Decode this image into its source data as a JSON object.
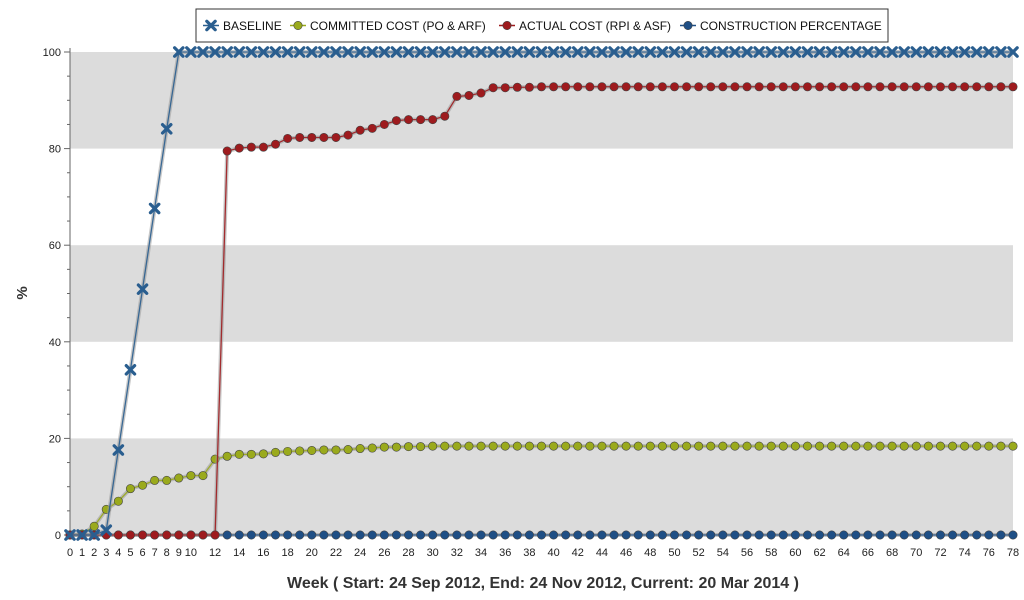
{
  "chart_data": {
    "type": "line",
    "xlabel": "Week ( Start: 24 Sep 2012, End: 24 Nov 2012, Current: 20 Mar 2014 )",
    "ylabel": "%",
    "ylim": [
      0,
      100
    ],
    "yticks": [
      0,
      20,
      40,
      60,
      80,
      100
    ],
    "xlim": [
      0,
      78
    ],
    "x_ticks_labeled": [
      0,
      1,
      2,
      3,
      4,
      5,
      6,
      7,
      8,
      9,
      10,
      12,
      14,
      16,
      18,
      20,
      22,
      24,
      26,
      28,
      30,
      32,
      34,
      36,
      38,
      40,
      42,
      44,
      46,
      48,
      50,
      52,
      54,
      56,
      58,
      60,
      62,
      64,
      66,
      68,
      70,
      72,
      74,
      76,
      78
    ],
    "grid": "alternating horizontal bands",
    "legend_position": "top-center",
    "series": [
      {
        "name": "BASELINE",
        "color": "#2a5e8f",
        "marker": "x",
        "values": [
          0,
          0,
          0,
          1,
          17.6,
          34.2,
          50.9,
          67.6,
          84.1,
          100,
          100,
          100,
          100,
          100,
          100,
          100,
          100,
          100,
          100,
          100,
          100,
          100,
          100,
          100,
          100,
          100,
          100,
          100,
          100,
          100,
          100,
          100,
          100,
          100,
          100,
          100,
          100,
          100,
          100,
          100,
          100,
          100,
          100,
          100,
          100,
          100,
          100,
          100,
          100,
          100,
          100,
          100,
          100,
          100,
          100,
          100,
          100,
          100,
          100,
          100,
          100,
          100,
          100,
          100,
          100,
          100,
          100,
          100,
          100,
          100,
          100,
          100,
          100,
          100,
          100,
          100,
          100,
          100,
          100
        ]
      },
      {
        "name": "COMMITTED COST (PO & ARF)",
        "color": "#9aaa1c",
        "marker": "circle",
        "values": [
          0,
          0.2,
          1.8,
          5.3,
          7,
          9.6,
          10.3,
          11.3,
          11.3,
          11.8,
          12.3,
          12.3,
          15.7,
          16.3,
          16.7,
          16.7,
          16.8,
          17.1,
          17.3,
          17.4,
          17.5,
          17.6,
          17.6,
          17.7,
          17.9,
          18,
          18.2,
          18.2,
          18.3,
          18.3,
          18.4,
          18.4,
          18.4,
          18.4,
          18.4,
          18.4,
          18.4,
          18.4,
          18.4,
          18.4,
          18.4,
          18.4,
          18.4,
          18.4,
          18.4,
          18.4,
          18.4,
          18.4,
          18.4,
          18.4,
          18.4,
          18.4,
          18.4,
          18.4,
          18.4,
          18.4,
          18.4,
          18.4,
          18.4,
          18.4,
          18.4,
          18.4,
          18.4,
          18.4,
          18.4,
          18.4,
          18.4,
          18.4,
          18.4,
          18.4,
          18.4,
          18.4,
          18.4,
          18.4,
          18.4,
          18.4,
          18.4,
          18.4,
          18.4
        ]
      },
      {
        "name": "ACTUAL COST (RPI & ASF)",
        "color": "#9e1b1e",
        "marker": "circle",
        "values": [
          0,
          0,
          0,
          0,
          0,
          0,
          0,
          0,
          0,
          0,
          0,
          0,
          0,
          79.5,
          80.1,
          80.3,
          80.3,
          80.9,
          82.1,
          82.3,
          82.3,
          82.3,
          82.3,
          82.8,
          83.8,
          84.2,
          85,
          85.8,
          86,
          86,
          86,
          86.7,
          90.8,
          91,
          91.5,
          92.6,
          92.6,
          92.7,
          92.7,
          92.8,
          92.8,
          92.8,
          92.8,
          92.8,
          92.8,
          92.8,
          92.8,
          92.8,
          92.8,
          92.8,
          92.8,
          92.8,
          92.8,
          92.8,
          92.8,
          92.8,
          92.8,
          92.8,
          92.8,
          92.8,
          92.8,
          92.8,
          92.8,
          92.8,
          92.8,
          92.8,
          92.8,
          92.8,
          92.8,
          92.8,
          92.8,
          92.8,
          92.8,
          92.8,
          92.8,
          92.8,
          92.8,
          92.8,
          92.8
        ]
      },
      {
        "name": "CONSTRUCTION PERCENTAGE",
        "color": "#1f4f85",
        "marker": "circle",
        "values": [
          0,
          0,
          0,
          0,
          0,
          0,
          0,
          0,
          0,
          0,
          0,
          0,
          0,
          0,
          0,
          0,
          0,
          0,
          0,
          0,
          0,
          0,
          0,
          0,
          0,
          0,
          0,
          0,
          0,
          0,
          0,
          0,
          0,
          0,
          0,
          0,
          0,
          0,
          0,
          0,
          0,
          0,
          0,
          0,
          0,
          0,
          0,
          0,
          0,
          0,
          0,
          0,
          0,
          0,
          0,
          0,
          0,
          0,
          0,
          0,
          0,
          0,
          0,
          0,
          0,
          0,
          0,
          0,
          0,
          0,
          0,
          0,
          0,
          0,
          0,
          0,
          0,
          0,
          0
        ]
      }
    ]
  }
}
